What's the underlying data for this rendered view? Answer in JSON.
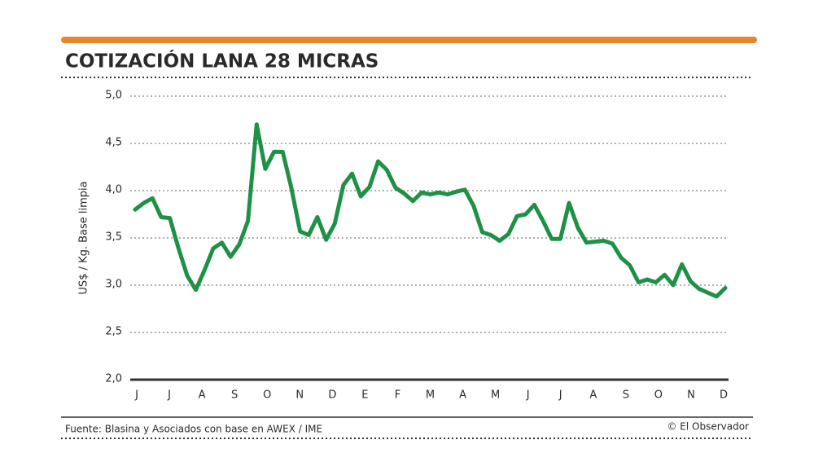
{
  "chart_data": {
    "type": "line",
    "title": "COTIZACIÓN LANA 28 MICRAS",
    "y_label": "US$ / Kg. Base limpia",
    "source": "Fuente: Blasina y Asociados con base en AWEX / IME",
    "credit": "© El Observador",
    "month_labels": [
      "J",
      "J",
      "A",
      "S",
      "O",
      "N",
      "D",
      "E",
      "F",
      "M",
      "A",
      "M",
      "J",
      "J",
      "A",
      "S",
      "O",
      "N",
      "D"
    ],
    "color": "#1e9146",
    "values": [
      3.8,
      3.87,
      3.92,
      3.72,
      3.71,
      3.39,
      3.1,
      2.95,
      3.16,
      3.39,
      3.45,
      3.3,
      3.43,
      3.68,
      4.7,
      4.23,
      4.41,
      4.41,
      4.03,
      3.57,
      3.53,
      3.72,
      3.48,
      3.65,
      4.06,
      4.18,
      3.94,
      4.04,
      4.31,
      4.22,
      4.03,
      3.97,
      3.89,
      3.98,
      3.96,
      3.98,
      3.96,
      3.99,
      4.01,
      3.84,
      3.56,
      3.53,
      3.47,
      3.54,
      3.73,
      3.75,
      3.85,
      3.68,
      3.49,
      3.49,
      3.87,
      3.61,
      3.45,
      3.46,
      3.47,
      3.44,
      3.29,
      3.21,
      3.03,
      3.06,
      3.03,
      3.11,
      3.0,
      3.22,
      3.04,
      2.96,
      2.92,
      2.88,
      2.97
    ],
    "ylim": [
      2.0,
      5.0
    ],
    "yticks": [
      {
        "value": 2.0,
        "label": "2,0"
      },
      {
        "value": 2.5,
        "label": "2,5"
      },
      {
        "value": 3.0,
        "label": "3,0"
      },
      {
        "value": 3.5,
        "label": "3,5"
      },
      {
        "value": 4.0,
        "label": "4,0"
      },
      {
        "value": 4.5,
        "label": "4,5"
      },
      {
        "value": 5.0,
        "label": "5,0"
      }
    ],
    "grid": true
  }
}
